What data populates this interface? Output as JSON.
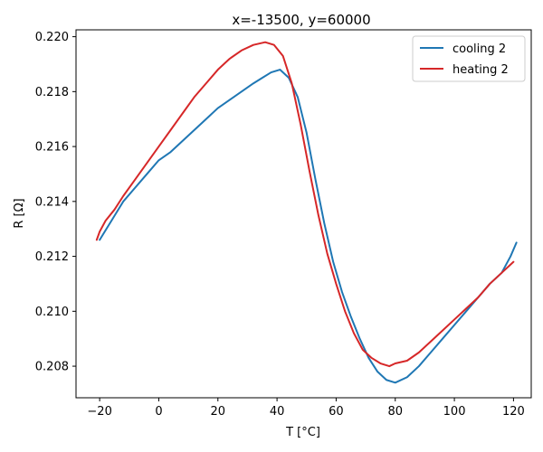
{
  "chart_data": {
    "type": "line",
    "title": "x=-13500, y=60000",
    "xlabel": "T [°C]",
    "ylabel": "R [Ω]",
    "xlim": [
      -28,
      126
    ],
    "ylim": [
      0.20685,
      0.22025
    ],
    "xticks": [
      -20,
      0,
      20,
      40,
      60,
      80,
      100,
      120
    ],
    "yticks": [
      0.208,
      0.21,
      0.212,
      0.214,
      0.216,
      0.218,
      0.22
    ],
    "ytick_labels": [
      "0.208",
      "0.210",
      "0.212",
      "0.214",
      "0.216",
      "0.218",
      "0.220"
    ],
    "grid": false,
    "legend_position": "top-right",
    "series": [
      {
        "name": "cooling 2",
        "color": "#1f77b4",
        "x": [
          121,
          119,
          116,
          112,
          108,
          104,
          100,
          96,
          92,
          88,
          84,
          80,
          77,
          74,
          71,
          68,
          65,
          62,
          59,
          56,
          53,
          50,
          47,
          44,
          41,
          38,
          35,
          32,
          28,
          24,
          20,
          16,
          12,
          8,
          4,
          0,
          -4,
          -8,
          -12,
          -16,
          -20
        ],
        "y": [
          0.2125,
          0.212,
          0.2114,
          0.211,
          0.2105,
          0.21,
          0.2095,
          0.209,
          0.2085,
          0.208,
          0.2076,
          0.2074,
          0.2075,
          0.2078,
          0.2083,
          0.209,
          0.2098,
          0.2107,
          0.2118,
          0.2132,
          0.2148,
          0.2165,
          0.2178,
          0.2185,
          0.2188,
          0.2187,
          0.2185,
          0.2183,
          0.218,
          0.2177,
          0.2174,
          0.217,
          0.2166,
          0.2162,
          0.2158,
          0.2155,
          0.215,
          0.2145,
          0.214,
          0.2133,
          0.2126
        ]
      },
      {
        "name": "heating 2",
        "color": "#d62728",
        "x": [
          -21,
          -20,
          -18,
          -15,
          -12,
          -8,
          -4,
          0,
          4,
          8,
          12,
          16,
          20,
          24,
          28,
          32,
          36,
          39,
          42,
          45,
          48,
          51,
          54,
          57,
          60,
          63,
          66,
          69,
          72,
          75,
          78,
          80,
          84,
          88,
          92,
          96,
          100,
          104,
          108,
          112,
          116,
          120
        ],
        "y": [
          0.2126,
          0.2129,
          0.2133,
          0.2137,
          0.2142,
          0.2148,
          0.2154,
          0.216,
          0.2166,
          0.2172,
          0.2178,
          0.2183,
          0.2188,
          0.2192,
          0.2195,
          0.2197,
          0.2198,
          0.2197,
          0.2193,
          0.2183,
          0.2168,
          0.2151,
          0.2135,
          0.2121,
          0.211,
          0.21,
          0.2092,
          0.2086,
          0.2083,
          0.2081,
          0.208,
          0.2081,
          0.2082,
          0.2085,
          0.2089,
          0.2093,
          0.2097,
          0.2101,
          0.2105,
          0.211,
          0.2114,
          0.2118
        ]
      }
    ]
  }
}
